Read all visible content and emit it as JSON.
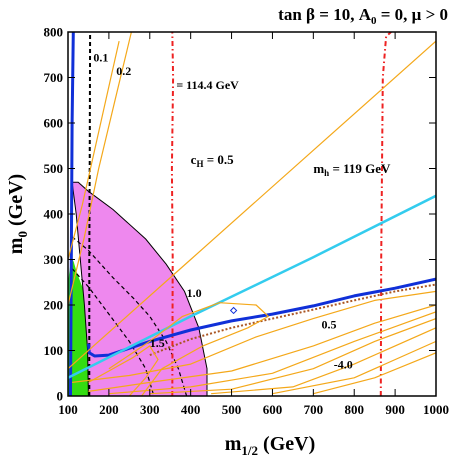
{
  "chart_data": {
    "type": "line",
    "title": "tan β = 10, A₀ = 0, μ > 0",
    "title_parts": {
      "a": "tan",
      "beta": "β",
      "b": " = 10, A",
      "sub": "0",
      "c": " = 0, ",
      "mu": "μ",
      "d": " > 0"
    },
    "xlabel": {
      "main": "m",
      "sub": "1/2",
      "unit": " (GeV)"
    },
    "ylabel": {
      "main": "m",
      "sub": "0",
      "unit": " (GeV)"
    },
    "xlim": [
      100,
      1000
    ],
    "ylim": [
      0,
      800
    ],
    "xticks": [
      100,
      200,
      300,
      400,
      500,
      600,
      700,
      800,
      900,
      1000
    ],
    "yticks": [
      0,
      100,
      200,
      300,
      400,
      500,
      600,
      700,
      800
    ],
    "grid": false,
    "legend": "none",
    "colors": {
      "green": "#33dd11",
      "pink": "#ee88ee",
      "orange": "#f4a81a",
      "blue": "#1030d8",
      "cyan": "#33ccee",
      "red": "#ee2222",
      "brown": "#aa5522",
      "black": "#000000"
    },
    "regions": [
      {
        "name": "green region",
        "color": "#33dd11",
        "points": [
          [
            100,
            0
          ],
          [
            100,
            250
          ],
          [
            108,
            305
          ],
          [
            114,
            295
          ],
          [
            122,
            270
          ],
          [
            135,
            240
          ],
          [
            150,
            205
          ],
          [
            155,
            120
          ],
          [
            155,
            0
          ]
        ]
      },
      {
        "name": "pink region",
        "color": "#ee88ee",
        "points": [
          [
            110,
            470
          ],
          [
            125,
            470
          ],
          [
            150,
            450
          ],
          [
            210,
            410
          ],
          [
            290,
            345
          ],
          [
            340,
            290
          ],
          [
            385,
            230
          ],
          [
            420,
            150
          ],
          [
            440,
            60
          ],
          [
            440,
            0
          ],
          [
            150,
            0
          ],
          [
            148,
            100
          ],
          [
            140,
            200
          ],
          [
            130,
            300
          ],
          [
            120,
            400
          ],
          [
            110,
            470
          ]
        ]
      }
    ],
    "series": [
      {
        "name": "0.1",
        "color": "#000000",
        "width": 2,
        "dash": "4 3",
        "points": [
          [
            152,
            0
          ],
          [
            152,
            300
          ],
          [
            153,
            500
          ],
          [
            154,
            800
          ]
        ]
      },
      {
        "name": "",
        "color": "#000000",
        "width": 1.2,
        "dash": "4 3",
        "points": [
          [
            110,
            350
          ],
          [
            150,
            320
          ],
          [
            210,
            260
          ],
          [
            260,
            215
          ],
          [
            300,
            175
          ],
          [
            340,
            120
          ],
          [
            370,
            60
          ],
          [
            390,
            0
          ]
        ]
      },
      {
        "name": "",
        "color": "#000000",
        "width": 1.2,
        "dash": "4 3",
        "points": [
          [
            110,
            280
          ],
          [
            150,
            240
          ],
          [
            200,
            180
          ],
          [
            250,
            120
          ],
          [
            290,
            60
          ],
          [
            310,
            0
          ]
        ]
      },
      {
        "name": "114.4 GeV",
        "color": "#ee2222",
        "width": 2,
        "dash": "5 3 1.5 3",
        "points": [
          [
            355,
            0
          ],
          [
            356,
            300
          ],
          [
            354,
            500
          ],
          [
            357,
            700
          ],
          [
            355,
            800
          ]
        ]
      },
      {
        "name": "119 GeV",
        "color": "#ee2222",
        "width": 2,
        "dash": "5 3 1.5 3",
        "points": [
          [
            865,
            0
          ],
          [
            866,
            300
          ],
          [
            868,
            500
          ],
          [
            870,
            700
          ],
          [
            878,
            790
          ],
          [
            890,
            800
          ]
        ]
      },
      {
        "name": "",
        "color": "#1030d8",
        "width": 3,
        "dash": "",
        "points": [
          [
            113,
            800
          ],
          [
            110,
            600
          ],
          [
            108,
            300
          ],
          [
            106,
            0
          ]
        ]
      },
      {
        "name": "",
        "color": "#1030d8",
        "width": 3,
        "dash": "",
        "points": [
          [
            150,
            115
          ],
          [
            152,
            95
          ],
          [
            165,
            88
          ],
          [
            200,
            90
          ],
          [
            300,
            120
          ],
          [
            400,
            145
          ],
          [
            500,
            165
          ],
          [
            600,
            180
          ],
          [
            700,
            198
          ],
          [
            800,
            220
          ],
          [
            900,
            237
          ],
          [
            1000,
            257
          ]
        ]
      },
      {
        "name": "",
        "color": "#aa5522",
        "width": 2,
        "dash": "2 2",
        "points": [
          [
            300,
            90
          ],
          [
            400,
            125
          ],
          [
            500,
            150
          ],
          [
            600,
            170
          ],
          [
            700,
            190
          ],
          [
            800,
            210
          ],
          [
            900,
            230
          ],
          [
            1000,
            245
          ]
        ]
      },
      {
        "name": "",
        "color": "#33ccee",
        "width": 2.5,
        "dash": "",
        "points": [
          [
            100,
            40
          ],
          [
            400,
            175
          ],
          [
            700,
            305
          ],
          [
            1000,
            440
          ]
        ]
      },
      {
        "name": "",
        "color": "#f4a81a",
        "width": 1.2,
        "dash": "",
        "points": [
          [
            100,
            60
          ],
          [
            400,
            300
          ],
          [
            700,
            540
          ],
          [
            1000,
            780
          ]
        ]
      },
      {
        "name": "0.2",
        "color": "#f4a81a",
        "width": 1.2,
        "dash": "",
        "points": [
          [
            100,
            200
          ],
          [
            140,
            350
          ],
          [
            175,
            500
          ],
          [
            215,
            650
          ],
          [
            255,
            800
          ]
        ]
      },
      {
        "name": "",
        "color": "#f4a81a",
        "width": 1.2,
        "dash": "",
        "points": [
          [
            100,
            300
          ],
          [
            135,
            420
          ],
          [
            170,
            560
          ],
          [
            205,
            700
          ],
          [
            225,
            780
          ]
        ]
      },
      {
        "name": "1.0",
        "color": "#f4a81a",
        "width": 1.2,
        "dash": "",
        "points": [
          [
            200,
            60
          ],
          [
            300,
            120
          ],
          [
            380,
            175
          ],
          [
            470,
            205
          ],
          [
            560,
            200
          ],
          [
            590,
            175
          ],
          [
            540,
            150
          ],
          [
            430,
            110
          ],
          [
            330,
            60
          ],
          [
            280,
            0
          ]
        ]
      },
      {
        "name": "1.5",
        "color": "#f4a81a",
        "width": 1.2,
        "dash": "",
        "points": [
          [
            150,
            30
          ],
          [
            200,
            55
          ],
          [
            260,
            85
          ],
          [
            300,
            110
          ],
          [
            320,
            80
          ],
          [
            290,
            40
          ],
          [
            250,
            0
          ]
        ]
      },
      {
        "name": "",
        "color": "#f4a81a",
        "width": 1.2,
        "dash": "",
        "points": [
          [
            110,
            30
          ],
          [
            250,
            45
          ],
          [
            400,
            70
          ],
          [
            560,
            130
          ],
          [
            700,
            170
          ],
          [
            850,
            210
          ],
          [
            1000,
            230
          ]
        ]
      },
      {
        "name": "",
        "color": "#f4a81a",
        "width": 1.2,
        "dash": "",
        "points": [
          [
            150,
            10
          ],
          [
            300,
            30
          ],
          [
            500,
            55
          ],
          [
            700,
            110
          ],
          [
            850,
            160
          ],
          [
            1000,
            200
          ]
        ]
      },
      {
        "name": "",
        "color": "#f4a81a",
        "width": 1.2,
        "dash": "",
        "points": [
          [
            200,
            5
          ],
          [
            400,
            20
          ],
          [
            600,
            50
          ],
          [
            800,
            120
          ],
          [
            1000,
            185
          ]
        ]
      },
      {
        "name": "",
        "color": "#f4a81a",
        "width": 1.2,
        "dash": "",
        "points": [
          [
            300,
            5
          ],
          [
            500,
            15
          ],
          [
            700,
            60
          ],
          [
            850,
            120
          ],
          [
            1000,
            170
          ]
        ]
      },
      {
        "name": "",
        "color": "#f4a81a",
        "width": 1.2,
        "dash": "",
        "points": [
          [
            450,
            5
          ],
          [
            650,
            20
          ],
          [
            800,
            70
          ],
          [
            1000,
            150
          ]
        ]
      },
      {
        "name": "",
        "color": "#f4a81a",
        "width": 1.2,
        "dash": "",
        "points": [
          [
            600,
            5
          ],
          [
            800,
            40
          ],
          [
            1000,
            120
          ]
        ]
      },
      {
        "name": "",
        "color": "#f4a81a",
        "width": 1.2,
        "dash": "",
        "points": [
          [
            700,
            5
          ],
          [
            850,
            40
          ],
          [
            1000,
            95
          ]
        ]
      }
    ],
    "markers": [
      {
        "name": "diamond",
        "x": 505,
        "y": 188,
        "color": "#1030d8"
      }
    ],
    "annotations": [
      {
        "name": "label-0.1",
        "text": "0.1",
        "x": 162,
        "y": 735
      },
      {
        "name": "label-0.2",
        "text": "0.2",
        "x": 218,
        "y": 705
      },
      {
        "name": "label-114",
        "text": "= 114.4 GeV",
        "x": 365,
        "y": 675
      },
      {
        "name": "label-1.0",
        "text": "1.0",
        "x": 390,
        "y": 218
      },
      {
        "name": "label-1.5",
        "text": "1.5",
        "x": 300,
        "y": 108
      },
      {
        "name": "label-0.5",
        "text": "0.5",
        "x": 720,
        "y": 148
      },
      {
        "name": "label--4.0",
        "text": "-4.0",
        "x": 750,
        "y": 60
      }
    ],
    "ch_label": {
      "main": "c",
      "sub": "H",
      "rest": " = 0.5",
      "x": 400,
      "y": 510
    },
    "mh_label": {
      "main": "m",
      "sub": "h",
      "rest": " = 119 GeV",
      "x": 700,
      "y": 490
    }
  }
}
